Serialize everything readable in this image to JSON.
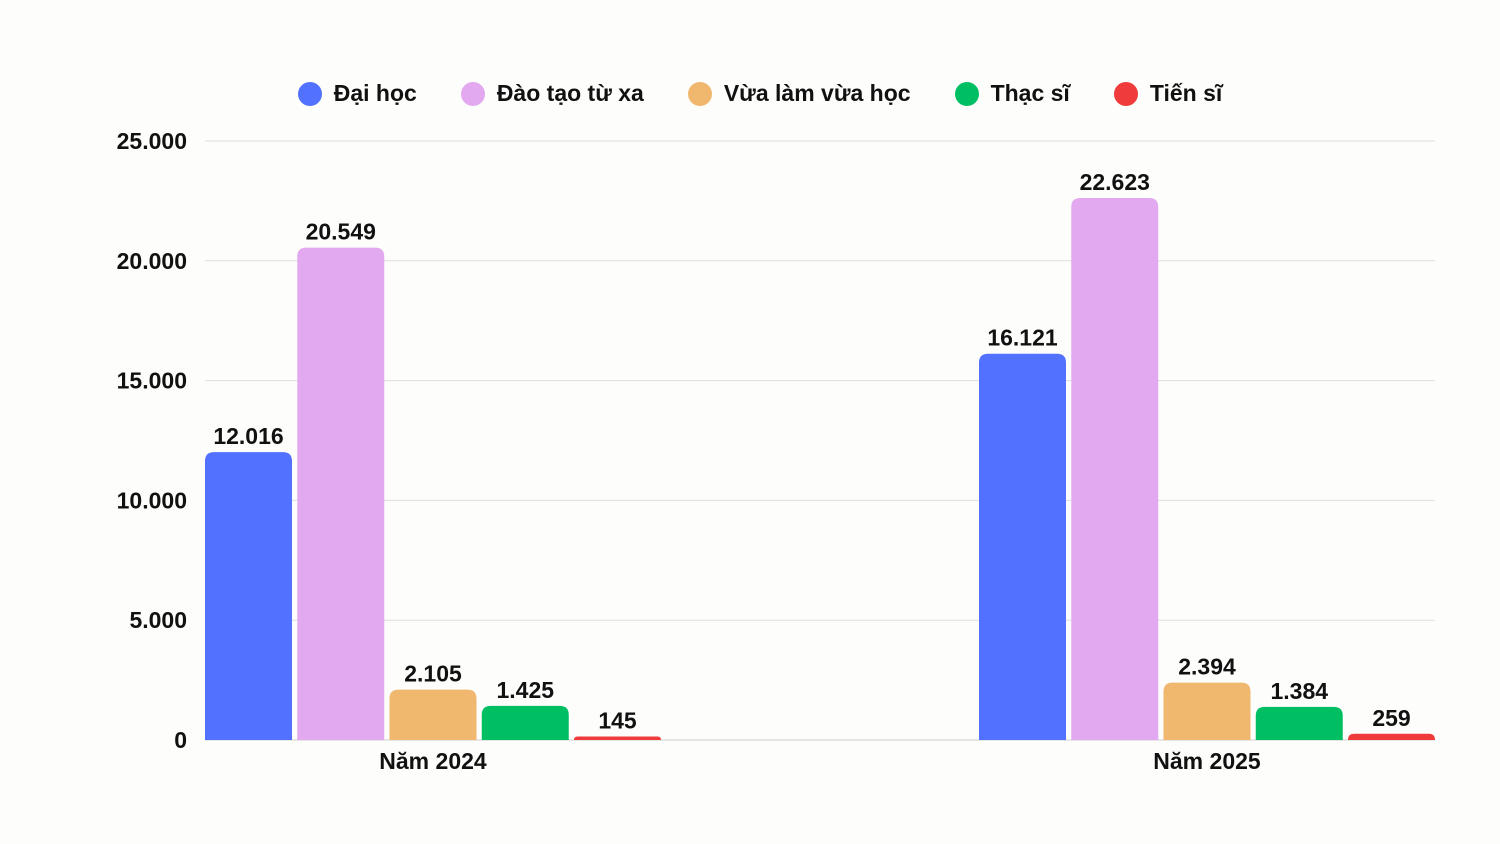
{
  "chart_data": {
    "type": "bar",
    "title": "",
    "xlabel": "",
    "ylabel": "",
    "ylim": [
      0,
      25000
    ],
    "yticks": [
      0,
      5000,
      10000,
      15000,
      20000,
      25000
    ],
    "ytick_labels": [
      "0",
      "5.000",
      "10.000",
      "15.000",
      "20.000",
      "25.000"
    ],
    "grid": true,
    "legend_position": "top-center",
    "categories": [
      "Năm 2024",
      "Năm 2025"
    ],
    "series": [
      {
        "name": "Đại học",
        "color": "#5271ff",
        "values": [
          12016,
          16121
        ],
        "labels": [
          "12.016",
          "16.121"
        ]
      },
      {
        "name": "Đào tạo từ xa",
        "color": "#e2a9f1",
        "values": [
          20549,
          22623
        ],
        "labels": [
          "20.549",
          "22.623"
        ]
      },
      {
        "name": "Vừa làm vừa học",
        "color": "#f0b86e",
        "values": [
          2105,
          2394
        ],
        "labels": [
          "2.105",
          "2.394"
        ]
      },
      {
        "name": "Thạc sĩ",
        "color": "#00bf63",
        "values": [
          1425,
          1384
        ],
        "labels": [
          "1.425",
          "1.384"
        ]
      },
      {
        "name": "Tiến sĩ",
        "color": "#ef3b3b",
        "values": [
          145,
          259
        ],
        "labels": [
          "145",
          "259"
        ]
      }
    ]
  }
}
